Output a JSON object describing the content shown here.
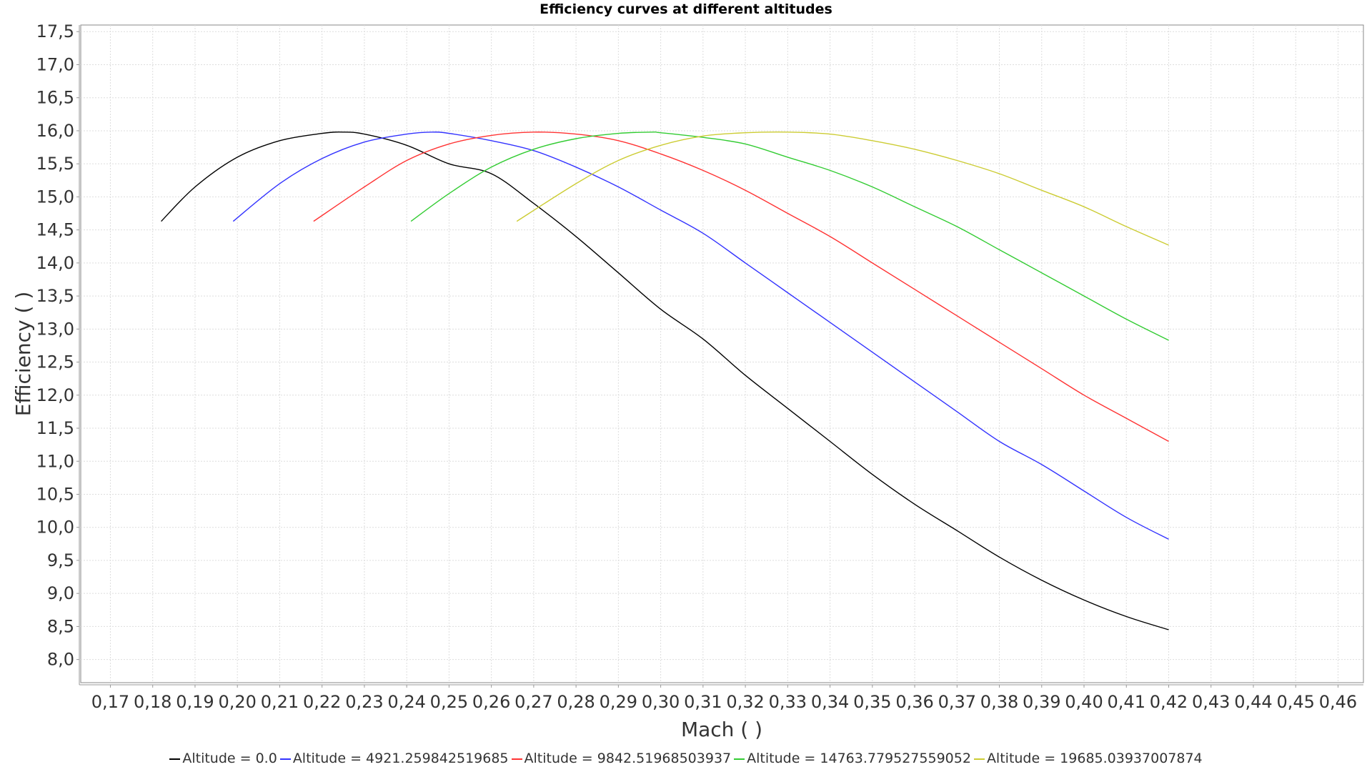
{
  "chart_data": {
    "type": "line",
    "title": "Efficiency curves at different altitudes",
    "xlabel": "Mach ( )",
    "ylabel": "Efficiency ( )",
    "xlim": [
      0.163,
      0.466
    ],
    "ylim": [
      7.65,
      17.6
    ],
    "x_ticks": [
      "0,17",
      "0,18",
      "0,19",
      "0,20",
      "0,21",
      "0,22",
      "0,23",
      "0,24",
      "0,25",
      "0,26",
      "0,27",
      "0,28",
      "0,29",
      "0,30",
      "0,31",
      "0,32",
      "0,33",
      "0,34",
      "0,35",
      "0,36",
      "0,37",
      "0,38",
      "0,39",
      "0,40",
      "0,41",
      "0,42",
      "0,43",
      "0,44",
      "0,45",
      "0,46"
    ],
    "y_ticks": [
      "8,0",
      "8,5",
      "9,0",
      "9,5",
      "10,0",
      "10,5",
      "11,0",
      "11,5",
      "12,0",
      "12,5",
      "13,0",
      "13,5",
      "14,0",
      "14,5",
      "15,0",
      "15,5",
      "16,0",
      "16,5",
      "17,0",
      "17,5"
    ],
    "grid": true,
    "legend_position": "bottom",
    "series": [
      {
        "name": "Altitude = 0.0",
        "color": "#000000",
        "x": [
          0.182,
          0.19,
          0.2,
          0.21,
          0.22,
          0.225,
          0.23,
          0.24,
          0.25,
          0.26,
          0.27,
          0.28,
          0.29,
          0.3,
          0.31,
          0.32,
          0.33,
          0.34,
          0.35,
          0.36,
          0.37,
          0.38,
          0.39,
          0.4,
          0.41,
          0.42
        ],
        "y": [
          14.63,
          15.15,
          15.6,
          15.85,
          15.96,
          15.98,
          15.95,
          15.78,
          15.5,
          15.35,
          14.9,
          14.4,
          13.85,
          13.3,
          12.85,
          12.3,
          11.8,
          11.3,
          10.8,
          10.35,
          9.95,
          9.55,
          9.2,
          8.9,
          8.65,
          8.45
        ]
      },
      {
        "name": "Altitude = 4921.259842519685",
        "color": "#3333ff",
        "x": [
          0.199,
          0.21,
          0.22,
          0.23,
          0.24,
          0.246,
          0.25,
          0.26,
          0.27,
          0.28,
          0.29,
          0.3,
          0.31,
          0.32,
          0.33,
          0.34,
          0.35,
          0.36,
          0.37,
          0.38,
          0.39,
          0.4,
          0.41,
          0.42
        ],
        "y": [
          14.63,
          15.2,
          15.58,
          15.83,
          15.95,
          15.98,
          15.96,
          15.85,
          15.7,
          15.45,
          15.15,
          14.8,
          14.45,
          14.0,
          13.55,
          13.1,
          12.65,
          12.2,
          11.75,
          11.3,
          10.95,
          10.55,
          10.15,
          9.82
        ]
      },
      {
        "name": "Altitude = 9842.51968503937",
        "color": "#ff3333",
        "x": [
          0.218,
          0.23,
          0.24,
          0.25,
          0.26,
          0.27,
          0.28,
          0.29,
          0.3,
          0.31,
          0.32,
          0.33,
          0.34,
          0.35,
          0.36,
          0.37,
          0.38,
          0.39,
          0.4,
          0.41,
          0.42
        ],
        "y": [
          14.63,
          15.15,
          15.55,
          15.8,
          15.93,
          15.98,
          15.95,
          15.85,
          15.65,
          15.4,
          15.1,
          14.75,
          14.4,
          14.0,
          13.6,
          13.2,
          12.8,
          12.4,
          12.0,
          11.65,
          11.3
        ]
      },
      {
        "name": "Altitude = 14763.779527559052",
        "color": "#33cc33",
        "x": [
          0.241,
          0.25,
          0.26,
          0.27,
          0.28,
          0.29,
          0.298,
          0.3,
          0.31,
          0.32,
          0.33,
          0.34,
          0.35,
          0.36,
          0.37,
          0.38,
          0.39,
          0.4,
          0.41,
          0.42
        ],
        "y": [
          14.63,
          15.05,
          15.45,
          15.72,
          15.88,
          15.96,
          15.98,
          15.97,
          15.9,
          15.8,
          15.6,
          15.4,
          15.15,
          14.85,
          14.55,
          14.2,
          13.85,
          13.5,
          13.15,
          12.83
        ]
      },
      {
        "name": "Altitude = 19685.03937007874",
        "color": "#cccc33",
        "x": [
          0.266,
          0.28,
          0.29,
          0.3,
          0.31,
          0.32,
          0.33,
          0.34,
          0.35,
          0.36,
          0.37,
          0.38,
          0.39,
          0.4,
          0.41,
          0.42
        ],
        "y": [
          14.63,
          15.2,
          15.55,
          15.78,
          15.92,
          15.97,
          15.98,
          15.95,
          15.85,
          15.72,
          15.55,
          15.35,
          15.1,
          14.85,
          14.55,
          14.27
        ]
      }
    ]
  }
}
